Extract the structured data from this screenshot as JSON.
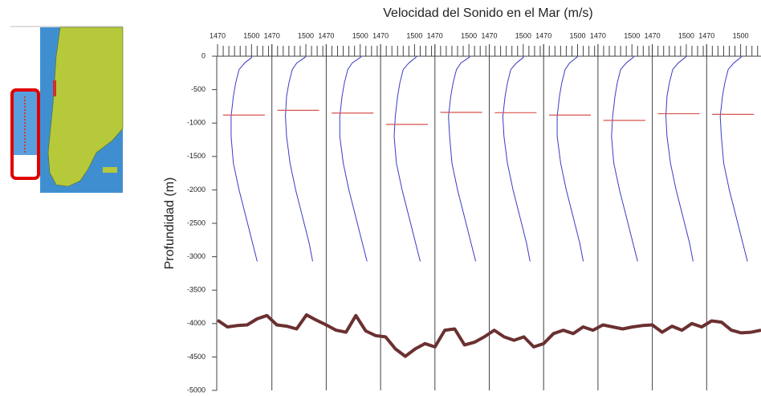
{
  "chart_data": {
    "type": "multi_profile",
    "title": "Velocidad del Sonido en el Mar (m/s)",
    "y_label": "Profundidad (m)",
    "ylim": [
      -5000,
      0
    ],
    "yticks": [
      0,
      -500,
      -1000,
      -1500,
      -2000,
      -2500,
      -3000,
      -3500,
      -4000,
      -4500,
      -5000
    ],
    "xlim": [
      1470,
      1518
    ],
    "xticks": [
      1470,
      1500
    ],
    "x_minor_ticks": [
      1475,
      1480,
      1485,
      1490,
      1495,
      1505,
      1510,
      1515
    ],
    "profile_color": "#3b3bc4",
    "sofar_color": "#d9534f",
    "depths": [
      0,
      -20,
      -100,
      -200,
      -400,
      -600,
      -900,
      -1200,
      -1600,
      -2000,
      -2400,
      -2800,
      -3070
    ],
    "panels": [
      {
        "values": [
          1500,
          1500,
          1494,
          1489,
          1486,
          1484,
          1482,
          1482,
          1484,
          1489,
          1495,
          1501,
          1505
        ],
        "sofar_depth": -880
      },
      {
        "values": [
          1500,
          1499,
          1492,
          1488,
          1485,
          1483,
          1482,
          1483,
          1486,
          1491,
          1497,
          1503,
          1506
        ],
        "sofar_depth": -810
      },
      {
        "values": [
          1501,
          1500,
          1493,
          1489,
          1486,
          1484,
          1482,
          1482,
          1485,
          1490,
          1496,
          1502,
          1506
        ],
        "sofar_depth": -850
      },
      {
        "values": [
          1502,
          1501,
          1495,
          1490,
          1487,
          1485,
          1483,
          1482,
          1484,
          1489,
          1495,
          1501,
          1505
        ],
        "sofar_depth": -1020
      },
      {
        "values": [
          1501,
          1500,
          1493,
          1489,
          1486,
          1484,
          1482,
          1483,
          1485,
          1490,
          1496,
          1502,
          1506
        ],
        "sofar_depth": -840
      },
      {
        "values": [
          1500,
          1500,
          1494,
          1489,
          1486,
          1484,
          1482,
          1483,
          1486,
          1491,
          1497,
          1503,
          1506
        ],
        "sofar_depth": -845
      },
      {
        "values": [
          1500,
          1499,
          1493,
          1489,
          1486,
          1484,
          1482,
          1482,
          1485,
          1490,
          1496,
          1502,
          1505
        ],
        "sofar_depth": -880
      },
      {
        "values": [
          1502,
          1501,
          1495,
          1490,
          1487,
          1485,
          1483,
          1482,
          1484,
          1489,
          1495,
          1501,
          1505
        ],
        "sofar_depth": -960
      },
      {
        "values": [
          1500,
          1499,
          1493,
          1488,
          1485,
          1483,
          1482,
          1483,
          1486,
          1491,
          1497,
          1503,
          1506
        ],
        "sofar_depth": -860
      },
      {
        "values": [
          1501,
          1500,
          1494,
          1489,
          1486,
          1484,
          1482,
          1483,
          1485,
          1490,
          1496,
          1502,
          1506
        ],
        "sofar_depth": -870
      }
    ],
    "bathymetry": {
      "color": "#6b3030",
      "values": [
        -3950,
        -4050,
        -4030,
        -4020,
        -3930,
        -3880,
        -4020,
        -4040,
        -4080,
        -3870,
        -3950,
        -4020,
        -4100,
        -4130,
        -3880,
        -4110,
        -4180,
        -4200,
        -4380,
        -4490,
        -4380,
        -4300,
        -4350,
        -4100,
        -4080,
        -4320,
        -4280,
        -4200,
        -4100,
        -4200,
        -4250,
        -4200,
        -4350,
        -4300,
        -4150,
        -4100,
        -4150,
        -4050,
        -4100,
        -4020,
        -4050,
        -4080,
        -4050,
        -4030,
        -4020,
        -4130,
        -4040,
        -4100,
        -4000,
        -4050,
        -3960,
        -3980,
        -4100,
        -4140,
        -4130,
        -4100
      ]
    }
  }
}
